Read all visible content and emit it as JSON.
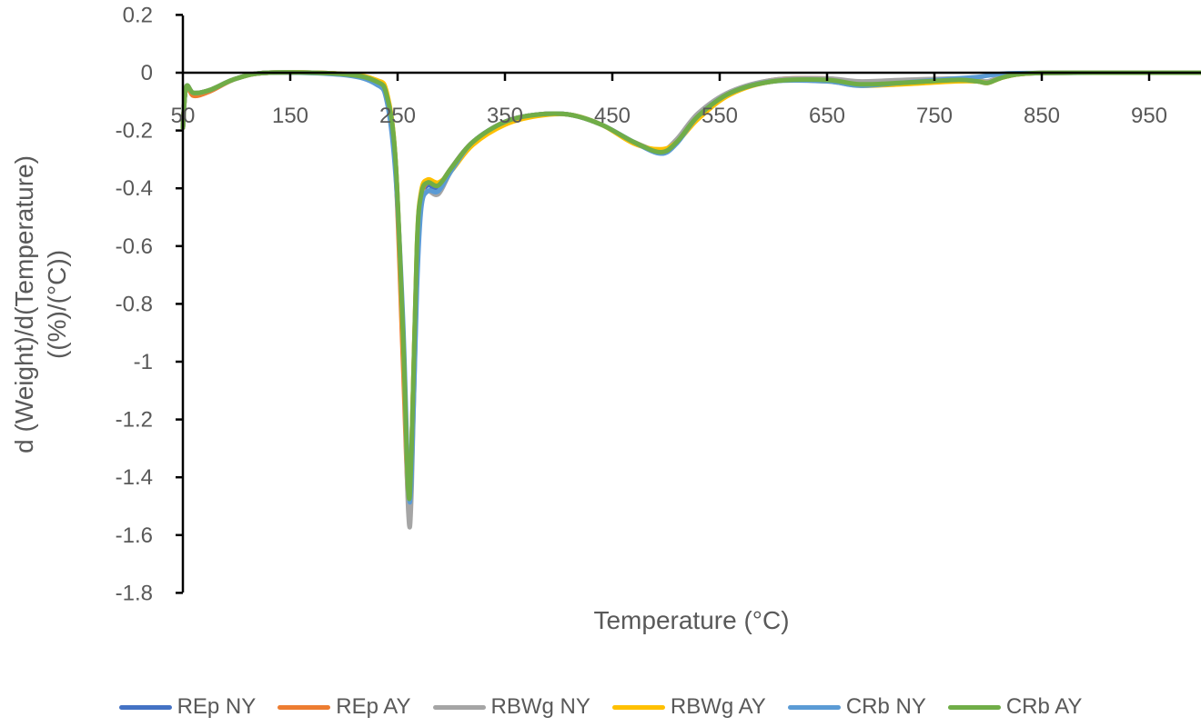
{
  "chart_data": {
    "type": "line",
    "title": "",
    "xlabel": "Temperature (°C)",
    "ylabel_line1": "d (Weight)/d(Temperature)",
    "ylabel_line2": "((%)/(°C))",
    "xlim": [
      50,
      1000
    ],
    "ylim": [
      -1.8,
      0.2
    ],
    "x_ticks": [
      50,
      150,
      250,
      350,
      450,
      550,
      650,
      750,
      850,
      950
    ],
    "x_tick_labels": [
      "50",
      "150",
      "250",
      "350",
      "450",
      "550",
      "650",
      "750",
      "850",
      "950"
    ],
    "y_ticks": [
      0.2,
      0,
      -0.2,
      -0.4,
      -0.6,
      -0.8,
      -1,
      -1.2,
      -1.4,
      -1.6,
      -1.8
    ],
    "y_tick_labels": [
      "0.2",
      "0",
      "-0.2",
      "-0.4",
      "-0.6",
      "-0.8",
      "-1",
      "-1.2",
      "-1.4",
      "-1.6",
      "-1.8"
    ],
    "grid": false,
    "legend_position": "bottom",
    "x": [
      50,
      53,
      60,
      75,
      100,
      130,
      200,
      230,
      240,
      248,
      255,
      260,
      263,
      268,
      272,
      278,
      288,
      300,
      320,
      350,
      380,
      410,
      440,
      470,
      495,
      510,
      530,
      560,
      600,
      650,
      680,
      720,
      770,
      790,
      800,
      815,
      840,
      900,
      1000
    ],
    "series": [
      {
        "name": "REp NY",
        "color": "#4472C4",
        "values": [
          -0.19,
          -0.05,
          -0.07,
          -0.06,
          -0.02,
          0,
          -0.005,
          -0.03,
          -0.08,
          -0.32,
          -0.95,
          -1.48,
          -1.35,
          -0.65,
          -0.44,
          -0.39,
          -0.4,
          -0.33,
          -0.24,
          -0.17,
          -0.145,
          -0.145,
          -0.18,
          -0.24,
          -0.278,
          -0.24,
          -0.15,
          -0.07,
          -0.03,
          -0.025,
          -0.04,
          -0.035,
          -0.025,
          -0.03,
          -0.03,
          -0.012,
          -0.002,
          0,
          0
        ]
      },
      {
        "name": "REp AY",
        "color": "#ED7D31",
        "values": [
          -0.19,
          -0.05,
          -0.08,
          -0.065,
          -0.02,
          0,
          -0.005,
          -0.03,
          -0.08,
          -0.33,
          -1.0,
          -1.49,
          -1.3,
          -0.62,
          -0.43,
          -0.38,
          -0.39,
          -0.33,
          -0.24,
          -0.17,
          -0.145,
          -0.145,
          -0.18,
          -0.24,
          -0.27,
          -0.235,
          -0.15,
          -0.07,
          -0.025,
          -0.02,
          -0.035,
          -0.035,
          -0.025,
          -0.03,
          -0.035,
          -0.015,
          -0.002,
          0,
          0
        ]
      },
      {
        "name": "RBWg NY",
        "color": "#A5A5A5",
        "values": [
          -0.19,
          -0.05,
          -0.07,
          -0.06,
          -0.02,
          0,
          -0.005,
          -0.03,
          -0.08,
          -0.3,
          -0.92,
          -1.52,
          -1.45,
          -0.7,
          -0.45,
          -0.41,
          -0.42,
          -0.34,
          -0.24,
          -0.17,
          -0.145,
          -0.145,
          -0.18,
          -0.24,
          -0.27,
          -0.23,
          -0.14,
          -0.065,
          -0.025,
          -0.02,
          -0.03,
          -0.025,
          -0.02,
          -0.025,
          -0.03,
          -0.012,
          -0.002,
          0,
          0
        ]
      },
      {
        "name": "RBWg AY",
        "color": "#FFC000",
        "values": [
          -0.19,
          -0.05,
          -0.07,
          -0.06,
          -0.02,
          0,
          -0.004,
          -0.025,
          -0.07,
          -0.3,
          -0.92,
          -1.44,
          -1.3,
          -0.6,
          -0.41,
          -0.37,
          -0.38,
          -0.34,
          -0.25,
          -0.18,
          -0.15,
          -0.145,
          -0.18,
          -0.245,
          -0.265,
          -0.24,
          -0.16,
          -0.075,
          -0.03,
          -0.03,
          -0.045,
          -0.04,
          -0.03,
          -0.03,
          -0.035,
          -0.015,
          -0.002,
          0,
          0
        ]
      },
      {
        "name": "CRb NY",
        "color": "#5B9BD5",
        "values": [
          -0.19,
          -0.05,
          -0.07,
          -0.06,
          -0.02,
          0,
          -0.008,
          -0.04,
          -0.1,
          -0.35,
          -0.85,
          -1.42,
          -1.4,
          -0.75,
          -0.47,
          -0.41,
          -0.41,
          -0.34,
          -0.24,
          -0.17,
          -0.145,
          -0.145,
          -0.18,
          -0.24,
          -0.28,
          -0.245,
          -0.15,
          -0.07,
          -0.03,
          -0.03,
          -0.045,
          -0.035,
          -0.02,
          -0.015,
          -0.01,
          -0.003,
          -0.001,
          0,
          0
        ]
      },
      {
        "name": "CRb AY",
        "color": "#70AD47",
        "values": [
          -0.19,
          -0.05,
          -0.07,
          -0.06,
          -0.02,
          0,
          -0.005,
          -0.03,
          -0.08,
          -0.3,
          -0.9,
          -1.45,
          -1.3,
          -0.6,
          -0.42,
          -0.38,
          -0.39,
          -0.33,
          -0.24,
          -0.17,
          -0.145,
          -0.145,
          -0.18,
          -0.24,
          -0.275,
          -0.24,
          -0.15,
          -0.07,
          -0.03,
          -0.025,
          -0.04,
          -0.035,
          -0.025,
          -0.03,
          -0.035,
          -0.015,
          -0.002,
          0,
          0
        ]
      }
    ]
  },
  "legend": {
    "items": [
      {
        "label": "REp NY",
        "color": "#4472C4"
      },
      {
        "label": "REp AY",
        "color": "#ED7D31"
      },
      {
        "label": "RBWg NY",
        "color": "#A5A5A5"
      },
      {
        "label": "RBWg AY",
        "color": "#FFC000"
      },
      {
        "label": "CRb NY",
        "color": "#5B9BD5"
      },
      {
        "label": "CRb AY",
        "color": "#70AD47"
      }
    ]
  }
}
